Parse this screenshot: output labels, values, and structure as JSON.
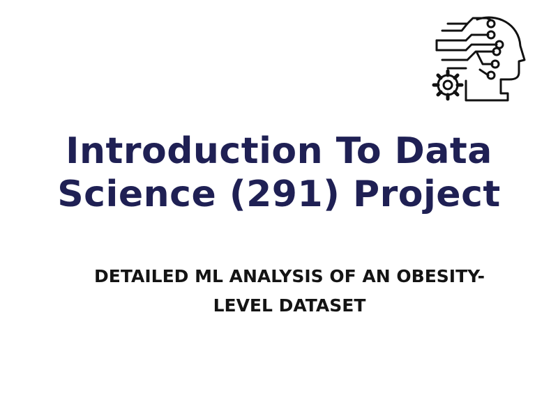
{
  "title": {
    "line1": "Introduction To Data",
    "line2": "Science (291) Project"
  },
  "subtitle": {
    "line1": "DETAILED ML ANALYSIS OF AN OBESITY-",
    "line2": "LEVEL DATASET"
  },
  "logo": {
    "icon": "ai-head-circuit-gear-icon"
  },
  "colors": {
    "background": "#ffffff",
    "title": "#1f2054",
    "subtitle": "#141414",
    "icon_stroke": "#111111"
  }
}
